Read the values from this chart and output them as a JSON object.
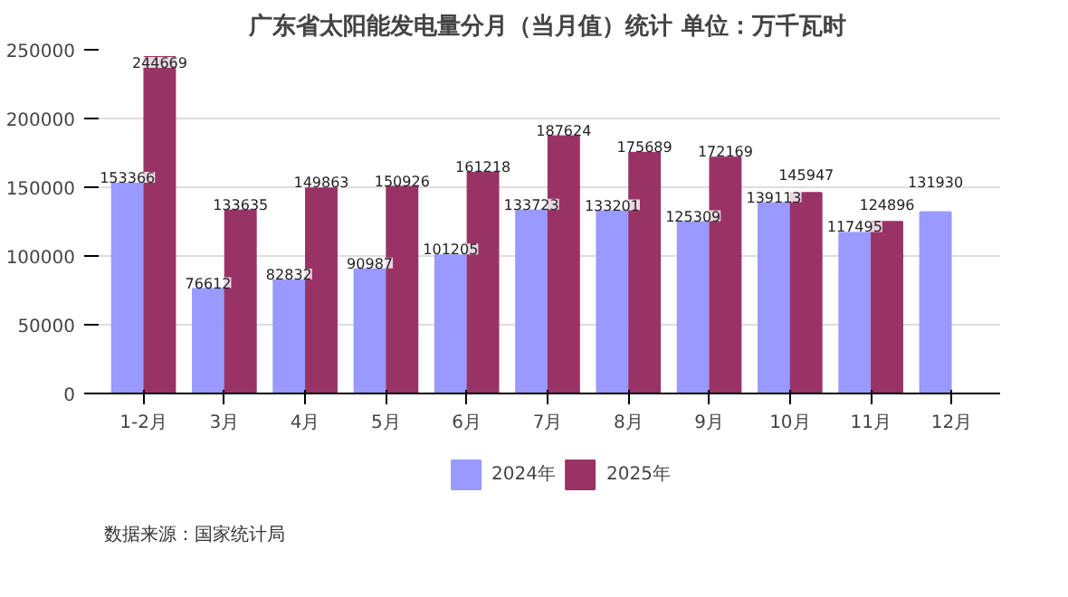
{
  "chart_data": {
    "type": "bar",
    "title": "广东省太阳能发电量分月（当月值）统计 单位：万千瓦时",
    "categories": [
      "1-2月",
      "3月",
      "4月",
      "5月",
      "6月",
      "7月",
      "8月",
      "9月",
      "10月",
      "11月",
      "12月"
    ],
    "series": [
      {
        "name": "2024年",
        "color": "#9999ff",
        "values": [
          153366,
          76612,
          82832,
          90987,
          101205,
          133723,
          133201,
          125309,
          139113,
          117495,
          131930
        ]
      },
      {
        "name": "2025年",
        "color": "#993366",
        "values": [
          244669,
          133635,
          149863,
          150926,
          161218,
          187624,
          175689,
          172169,
          145947,
          124896,
          null
        ]
      }
    ],
    "ylim": [
      0,
      250000
    ],
    "yticks": [
      0,
      50000,
      100000,
      150000,
      200000,
      250000
    ],
    "grid": "y",
    "legend": "bottom",
    "data_labels": true,
    "annotations": [
      "数据来源：国家统计局"
    ]
  }
}
